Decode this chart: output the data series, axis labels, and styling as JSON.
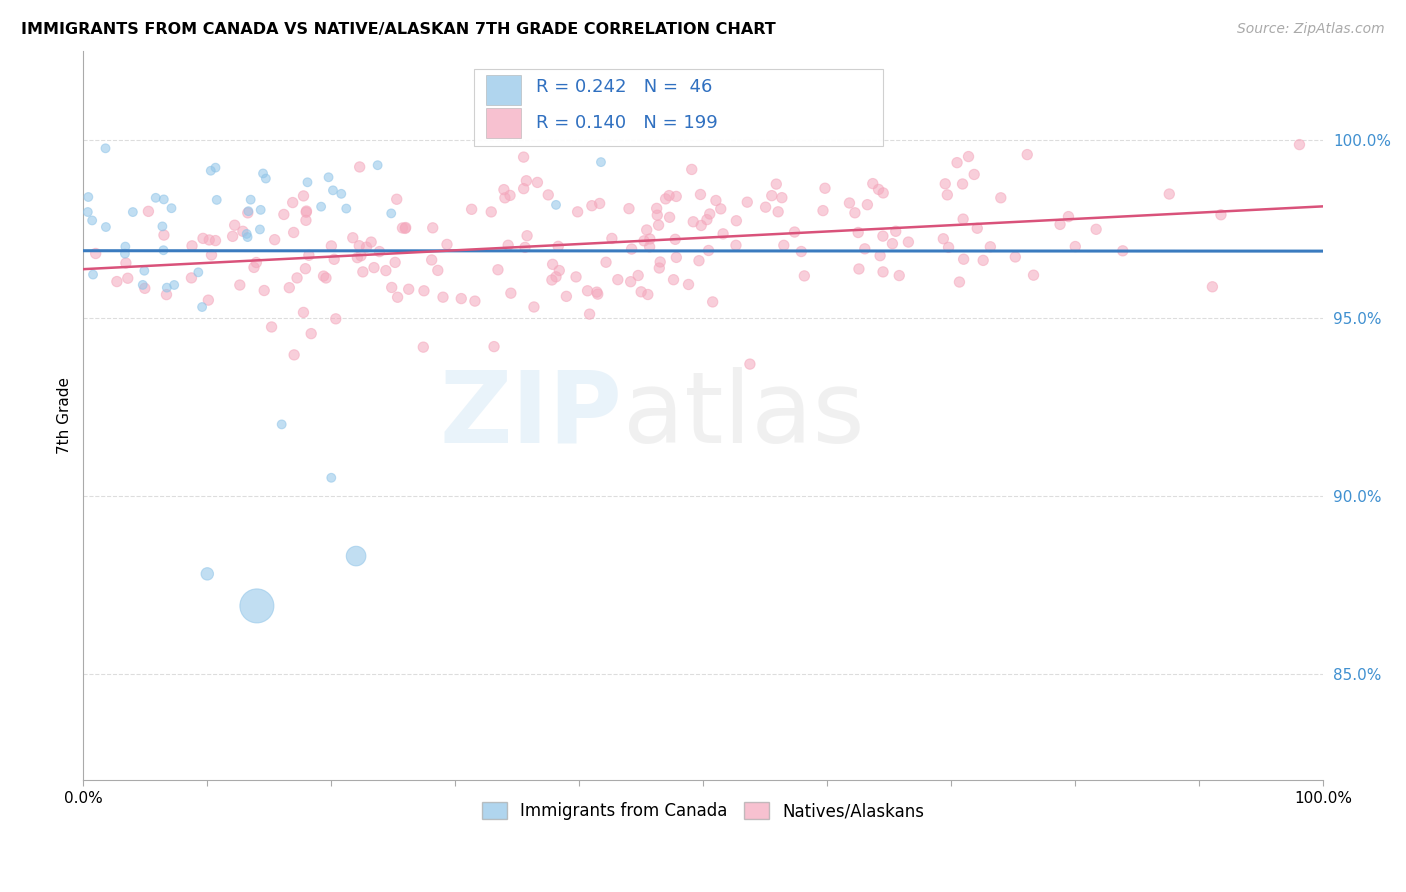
{
  "title": "IMMIGRANTS FROM CANADA VS NATIVE/ALASKAN 7TH GRADE CORRELATION CHART",
  "source": "Source: ZipAtlas.com",
  "ylabel": "7th Grade",
  "yticks": [
    0.85,
    0.9,
    0.95,
    1.0
  ],
  "ytick_labels": [
    "85.0%",
    "90.0%",
    "95.0%",
    "100.0%"
  ],
  "xlim": [
    0.0,
    1.0
  ],
  "ylim": [
    0.82,
    1.025
  ],
  "legend_label_blue": "Immigrants from Canada",
  "legend_label_pink": "Natives/Alaskans",
  "blue_color": "#8fc4e8",
  "pink_color": "#f4a7bc",
  "blue_line_color": "#3a7bbf",
  "pink_line_color": "#d9527a",
  "tick_color": "#4090d0",
  "R_blue": 0.242,
  "N_blue": 46,
  "R_pink": 0.14,
  "N_pink": 199,
  "annotation_color": "#3070c0"
}
